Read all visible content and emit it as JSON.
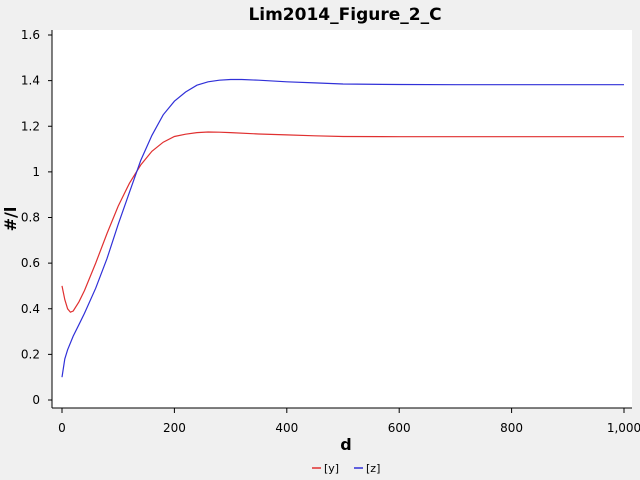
{
  "chart_data": {
    "type": "line",
    "title": "Lim2014_Figure_2_C",
    "xlabel": "d",
    "ylabel": "#/l",
    "xlim": [
      0,
      1000
    ],
    "ylim": [
      0,
      1.6
    ],
    "x_ticks": [
      0,
      200,
      400,
      600,
      800,
      1000
    ],
    "x_tick_labels": [
      "0",
      "200",
      "400",
      "600",
      "800",
      "1,000"
    ],
    "y_ticks": [
      0,
      0.2,
      0.4,
      0.6,
      0.8,
      1,
      1.2,
      1.4,
      1.6
    ],
    "y_tick_labels": [
      "0",
      "0.2",
      "0.4",
      "0.6",
      "0.8",
      "1",
      "1.2",
      "1.4",
      "1.6"
    ],
    "grid": false,
    "legend_position": "bottom-center",
    "series": [
      {
        "name": "[y]",
        "color": "#e03030",
        "x": [
          0,
          5,
          10,
          15,
          20,
          30,
          40,
          60,
          80,
          100,
          120,
          140,
          160,
          180,
          200,
          220,
          240,
          260,
          280,
          300,
          350,
          400,
          450,
          500,
          600,
          700,
          800,
          900,
          1000
        ],
        "y": [
          0.5,
          0.44,
          0.4,
          0.385,
          0.39,
          0.43,
          0.48,
          0.6,
          0.73,
          0.85,
          0.95,
          1.03,
          1.09,
          1.13,
          1.155,
          1.165,
          1.172,
          1.175,
          1.174,
          1.172,
          1.166,
          1.162,
          1.158,
          1.155,
          1.154,
          1.154,
          1.154,
          1.154,
          1.154
        ]
      },
      {
        "name": "[z]",
        "color": "#3030d8",
        "x": [
          0,
          5,
          10,
          20,
          30,
          40,
          60,
          80,
          100,
          120,
          140,
          160,
          180,
          200,
          220,
          240,
          260,
          280,
          300,
          320,
          350,
          400,
          450,
          500,
          600,
          700,
          800,
          900,
          1000
        ],
        "y": [
          0.1,
          0.18,
          0.22,
          0.28,
          0.33,
          0.38,
          0.49,
          0.62,
          0.77,
          0.91,
          1.05,
          1.16,
          1.25,
          1.31,
          1.35,
          1.38,
          1.395,
          1.402,
          1.405,
          1.405,
          1.402,
          1.395,
          1.39,
          1.385,
          1.383,
          1.382,
          1.382,
          1.382,
          1.382
        ]
      }
    ]
  }
}
